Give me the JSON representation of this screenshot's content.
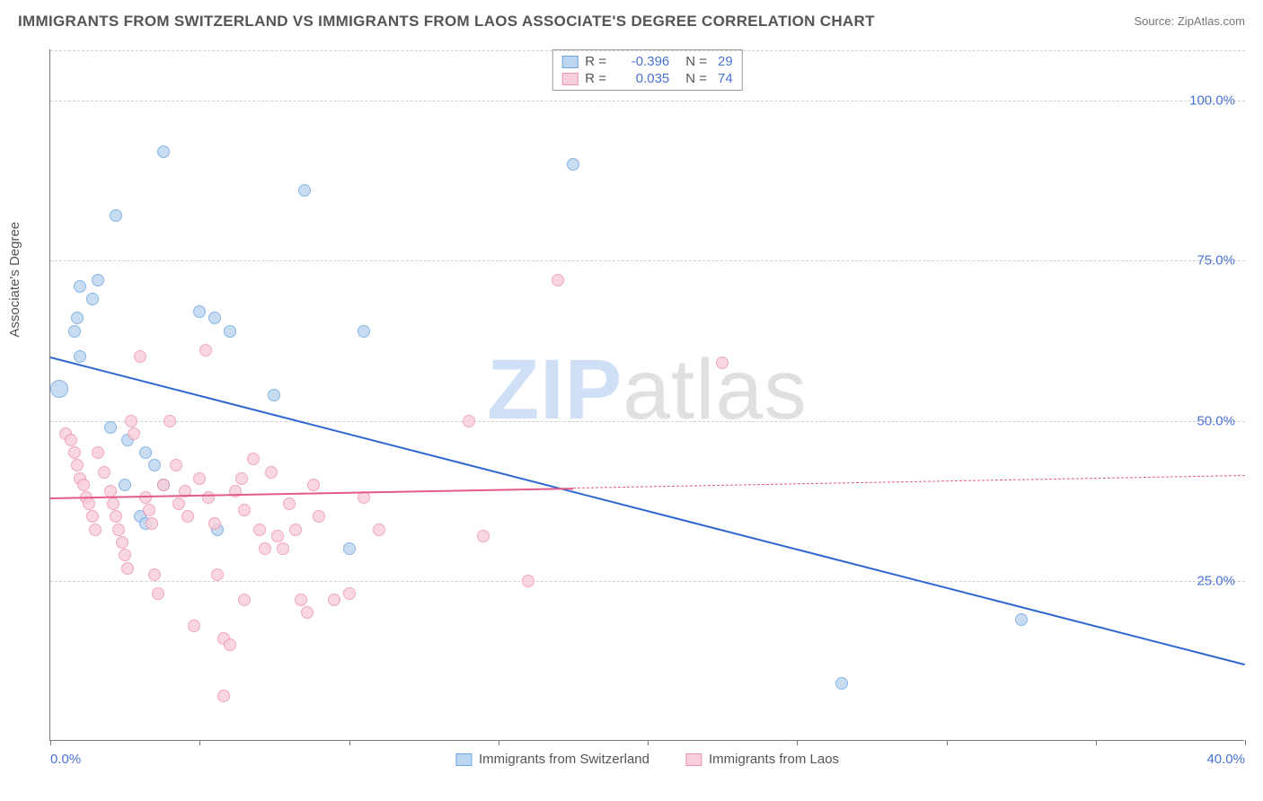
{
  "title": "IMMIGRANTS FROM SWITZERLAND VS IMMIGRANTS FROM LAOS ASSOCIATE'S DEGREE CORRELATION CHART",
  "source": "Source: ZipAtlas.com",
  "watermark": {
    "part1": "ZIP",
    "part2": "atlas"
  },
  "chart": {
    "type": "scatter",
    "ylabel": "Associate's Degree",
    "xlim": [
      0,
      40
    ],
    "ylim": [
      0,
      108
    ],
    "xticks": [
      0,
      5,
      10,
      15,
      20,
      25,
      30,
      35,
      40
    ],
    "xtick_labels": {
      "0": "0.0%",
      "40": "40.0%"
    },
    "yticks": [
      25,
      50,
      75,
      100
    ],
    "ytick_labels": {
      "25": "25.0%",
      "50": "50.0%",
      "75": "75.0%",
      "100": "100.0%"
    },
    "grid_color": "#d8d8d8",
    "background_color": "#ffffff",
    "axis_color": "#777777"
  },
  "series": [
    {
      "name": "Immigrants from Switzerland",
      "fill": "#bcd5f0",
      "stroke": "#6ea5de",
      "trend_color": "#2e67d1",
      "r_value": "-0.396",
      "n_value": "29",
      "trend": {
        "x1": 0,
        "y1": 60,
        "x2": 40,
        "y2": 12,
        "solid_until_x": 40
      },
      "points": [
        {
          "x": 0.3,
          "y": 55,
          "r": 10
        },
        {
          "x": 0.8,
          "y": 64,
          "r": 7
        },
        {
          "x": 0.9,
          "y": 66,
          "r": 7
        },
        {
          "x": 1.0,
          "y": 71,
          "r": 7
        },
        {
          "x": 1.4,
          "y": 69,
          "r": 7
        },
        {
          "x": 1.6,
          "y": 72,
          "r": 7
        },
        {
          "x": 1.0,
          "y": 60,
          "r": 7
        },
        {
          "x": 2.0,
          "y": 49,
          "r": 7
        },
        {
          "x": 2.2,
          "y": 82,
          "r": 7
        },
        {
          "x": 2.5,
          "y": 40,
          "r": 7
        },
        {
          "x": 2.6,
          "y": 47,
          "r": 7
        },
        {
          "x": 3.0,
          "y": 35,
          "r": 7
        },
        {
          "x": 3.2,
          "y": 45,
          "r": 7
        },
        {
          "x": 3.5,
          "y": 43,
          "r": 7
        },
        {
          "x": 3.8,
          "y": 40,
          "r": 7
        },
        {
          "x": 3.8,
          "y": 92,
          "r": 7
        },
        {
          "x": 3.2,
          "y": 34,
          "r": 7
        },
        {
          "x": 5.0,
          "y": 67,
          "r": 7
        },
        {
          "x": 5.5,
          "y": 66,
          "r": 7
        },
        {
          "x": 5.6,
          "y": 33,
          "r": 7
        },
        {
          "x": 6.0,
          "y": 64,
          "r": 7
        },
        {
          "x": 7.5,
          "y": 54,
          "r": 7
        },
        {
          "x": 8.5,
          "y": 86,
          "r": 7
        },
        {
          "x": 10.0,
          "y": 30,
          "r": 7
        },
        {
          "x": 10.5,
          "y": 64,
          "r": 7
        },
        {
          "x": 17.5,
          "y": 90,
          "r": 7
        },
        {
          "x": 26.5,
          "y": 9,
          "r": 7
        },
        {
          "x": 32.5,
          "y": 19,
          "r": 7
        }
      ]
    },
    {
      "name": "Immigrants from Laos",
      "fill": "#f8cfda",
      "stroke": "#ec94af",
      "trend_color": "#e45a88",
      "r_value": "0.035",
      "n_value": "74",
      "trend": {
        "x1": 0,
        "y1": 38,
        "x2": 40,
        "y2": 41.5,
        "solid_until_x": 17.5
      },
      "points": [
        {
          "x": 0.5,
          "y": 48,
          "r": 7
        },
        {
          "x": 0.7,
          "y": 47,
          "r": 7
        },
        {
          "x": 0.8,
          "y": 45,
          "r": 7
        },
        {
          "x": 0.9,
          "y": 43,
          "r": 7
        },
        {
          "x": 1.0,
          "y": 41,
          "r": 7
        },
        {
          "x": 1.1,
          "y": 40,
          "r": 7
        },
        {
          "x": 1.2,
          "y": 38,
          "r": 7
        },
        {
          "x": 1.3,
          "y": 37,
          "r": 7
        },
        {
          "x": 1.4,
          "y": 35,
          "r": 7
        },
        {
          "x": 1.5,
          "y": 33,
          "r": 7
        },
        {
          "x": 1.6,
          "y": 45,
          "r": 7
        },
        {
          "x": 1.8,
          "y": 42,
          "r": 7
        },
        {
          "x": 2.0,
          "y": 39,
          "r": 7
        },
        {
          "x": 2.1,
          "y": 37,
          "r": 7
        },
        {
          "x": 2.2,
          "y": 35,
          "r": 7
        },
        {
          "x": 2.3,
          "y": 33,
          "r": 7
        },
        {
          "x": 2.4,
          "y": 31,
          "r": 7
        },
        {
          "x": 2.5,
          "y": 29,
          "r": 7
        },
        {
          "x": 2.6,
          "y": 27,
          "r": 7
        },
        {
          "x": 2.7,
          "y": 50,
          "r": 7
        },
        {
          "x": 2.8,
          "y": 48,
          "r": 7
        },
        {
          "x": 3.0,
          "y": 60,
          "r": 7
        },
        {
          "x": 3.2,
          "y": 38,
          "r": 7
        },
        {
          "x": 3.3,
          "y": 36,
          "r": 7
        },
        {
          "x": 3.4,
          "y": 34,
          "r": 7
        },
        {
          "x": 3.5,
          "y": 26,
          "r": 7
        },
        {
          "x": 3.6,
          "y": 23,
          "r": 7
        },
        {
          "x": 3.8,
          "y": 40,
          "r": 7
        },
        {
          "x": 4.0,
          "y": 50,
          "r": 7
        },
        {
          "x": 4.2,
          "y": 43,
          "r": 7
        },
        {
          "x": 4.3,
          "y": 37,
          "r": 7
        },
        {
          "x": 4.5,
          "y": 39,
          "r": 7
        },
        {
          "x": 4.6,
          "y": 35,
          "r": 7
        },
        {
          "x": 4.8,
          "y": 18,
          "r": 7
        },
        {
          "x": 5.0,
          "y": 41,
          "r": 7
        },
        {
          "x": 5.2,
          "y": 61,
          "r": 7
        },
        {
          "x": 5.3,
          "y": 38,
          "r": 7
        },
        {
          "x": 5.5,
          "y": 34,
          "r": 7
        },
        {
          "x": 5.6,
          "y": 26,
          "r": 7
        },
        {
          "x": 5.8,
          "y": 16,
          "r": 7
        },
        {
          "x": 5.8,
          "y": 7,
          "r": 7
        },
        {
          "x": 6.0,
          "y": 15,
          "r": 7
        },
        {
          "x": 6.2,
          "y": 39,
          "r": 7
        },
        {
          "x": 6.4,
          "y": 41,
          "r": 7
        },
        {
          "x": 6.5,
          "y": 36,
          "r": 7
        },
        {
          "x": 6.5,
          "y": 22,
          "r": 7
        },
        {
          "x": 6.8,
          "y": 44,
          "r": 7
        },
        {
          "x": 7.0,
          "y": 33,
          "r": 7
        },
        {
          "x": 7.2,
          "y": 30,
          "r": 7
        },
        {
          "x": 7.4,
          "y": 42,
          "r": 7
        },
        {
          "x": 7.6,
          "y": 32,
          "r": 7
        },
        {
          "x": 7.8,
          "y": 30,
          "r": 7
        },
        {
          "x": 8.0,
          "y": 37,
          "r": 7
        },
        {
          "x": 8.2,
          "y": 33,
          "r": 7
        },
        {
          "x": 8.4,
          "y": 22,
          "r": 7
        },
        {
          "x": 8.6,
          "y": 20,
          "r": 7
        },
        {
          "x": 8.8,
          "y": 40,
          "r": 7
        },
        {
          "x": 9.0,
          "y": 35,
          "r": 7
        },
        {
          "x": 9.5,
          "y": 22,
          "r": 7
        },
        {
          "x": 10.0,
          "y": 23,
          "r": 7
        },
        {
          "x": 10.5,
          "y": 38,
          "r": 7
        },
        {
          "x": 11.0,
          "y": 33,
          "r": 7
        },
        {
          "x": 14.0,
          "y": 50,
          "r": 7
        },
        {
          "x": 14.5,
          "y": 32,
          "r": 7
        },
        {
          "x": 16.0,
          "y": 25,
          "r": 7
        },
        {
          "x": 17.0,
          "y": 72,
          "r": 7
        },
        {
          "x": 22.5,
          "y": 59,
          "r": 7
        }
      ]
    }
  ],
  "legend_top_labels": {
    "r": "R =",
    "n": "N ="
  },
  "legend_bottom": [
    {
      "label": "Immigrants from Switzerland",
      "fill": "#bcd5f0",
      "stroke": "#6ea5de"
    },
    {
      "label": "Immigrants from Laos",
      "fill": "#f8cfda",
      "stroke": "#ec94af"
    }
  ]
}
